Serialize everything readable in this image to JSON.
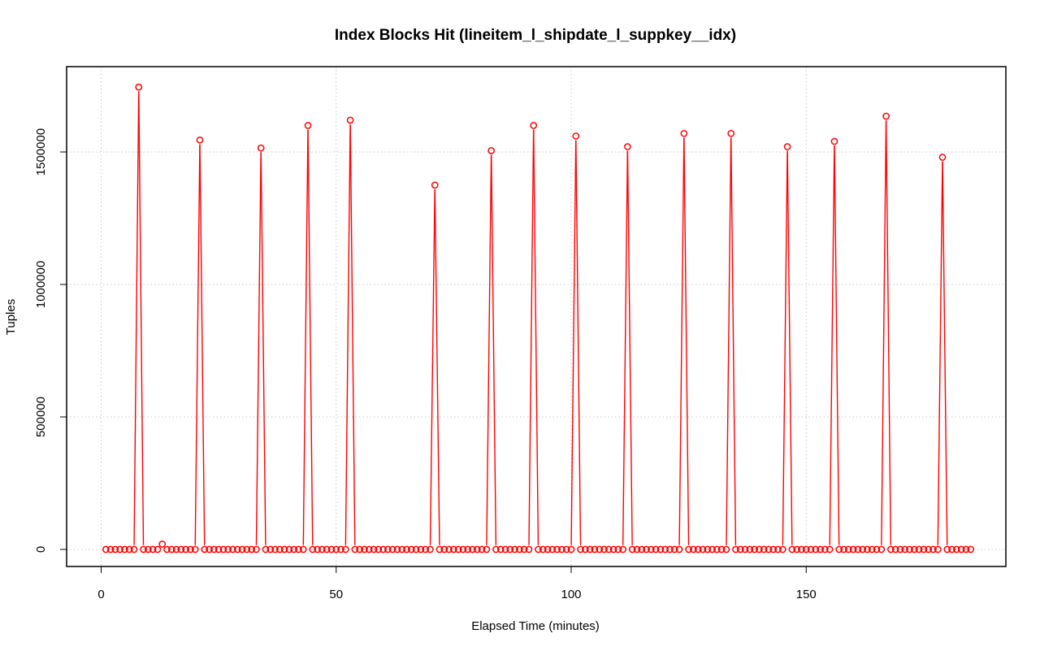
{
  "chart_data": {
    "type": "line",
    "title": "Index Blocks Hit (lineitem_l_shipdate_l_suppkey__idx)",
    "xlabel": "Elapsed Time (minutes)",
    "ylabel": "Tuples",
    "xlim": [
      0,
      185
    ],
    "ylim": [
      0,
      1750000
    ],
    "x_ticks": [
      0,
      50,
      100,
      150
    ],
    "y_ticks": [
      0,
      500000,
      1000000,
      1500000
    ],
    "x_tick_labels": [
      "0",
      "50",
      "100",
      "150"
    ],
    "y_tick_labels": [
      "0",
      "500000",
      "1000000",
      "1500000"
    ],
    "grid": true,
    "series_color": "#ff0000",
    "marker": "open-circle",
    "x_start": 1,
    "x_end": 185,
    "baseline_value": 0,
    "nonzero_points": [
      {
        "x": 8,
        "y": 1745000
      },
      {
        "x": 13,
        "y": 20000
      },
      {
        "x": 21,
        "y": 1545000
      },
      {
        "x": 34,
        "y": 1515000
      },
      {
        "x": 44,
        "y": 1600000
      },
      {
        "x": 53,
        "y": 1620000
      },
      {
        "x": 71,
        "y": 1375000
      },
      {
        "x": 83,
        "y": 1505000
      },
      {
        "x": 92,
        "y": 1600000
      },
      {
        "x": 101,
        "y": 1560000
      },
      {
        "x": 112,
        "y": 1520000
      },
      {
        "x": 124,
        "y": 1570000
      },
      {
        "x": 134,
        "y": 1570000
      },
      {
        "x": 146,
        "y": 1520000
      },
      {
        "x": 156,
        "y": 1540000
      },
      {
        "x": 167,
        "y": 1635000
      },
      {
        "x": 179,
        "y": 1480000
      }
    ]
  }
}
